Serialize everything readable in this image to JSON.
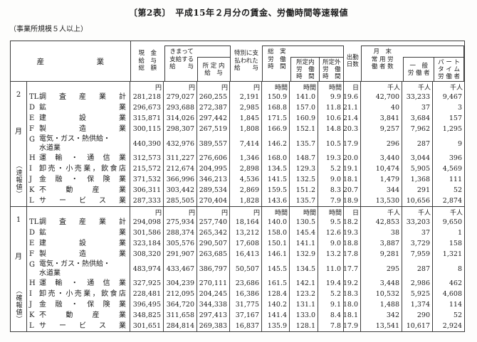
{
  "page": {
    "title": "〔第2表〕　平成15年２月分の賃金、労働時間等速報値",
    "subtitle": "（事業所規模５人以上）"
  },
  "table": {
    "industry_header": "産　　　　　　　業",
    "headers": {
      "cash_total": "現　金\n給　与\n総　額",
      "contractual_group": "きまって\n支給する\n給　　与",
      "scheduled_pay": "所 定 内\n給　与",
      "special_pay": "特別に支\n払われた\n給　　与",
      "total_hours_group": "総　実\n労　働\n時　間",
      "scheduled_hours": "所定内\n労　働\n時　間",
      "overtime_hours": "所定外\n労　働\n時　間",
      "days_worked": "出勤\n日数",
      "workers_group": "月　末\n常 用 労\n働 者 数",
      "general_workers": "一　般\n労 働 者",
      "parttime_workers": "パ ー ト\nタ イ ム\n労 働 者"
    },
    "units": [
      "円",
      "円",
      "円",
      "円",
      "時間",
      "時間",
      "時間",
      "日",
      "千人",
      "千人",
      "千人"
    ],
    "sections": [
      {
        "month": "2",
        "month_suffix": "月",
        "note": "（速報値）",
        "rows": [
          {
            "code": "TL",
            "name": "調査産業計",
            "multiline": false,
            "values": [
              "281,218",
              "279,027",
              "260,255",
              "2,191",
              "150.9",
              "141.0",
              "9.9",
              "19.6",
              "42,700",
              "33,233",
              "9,467"
            ]
          },
          {
            "code": "D",
            "name": "鉱業",
            "multiline": false,
            "values": [
              "296,673",
              "293,688",
              "272,387",
              "2,985",
              "168.8",
              "157.0",
              "11.8",
              "21.1",
              "40",
              "37",
              "3"
            ]
          },
          {
            "code": "E",
            "name": "建設業",
            "multiline": false,
            "values": [
              "315,871",
              "314,026",
              "297,442",
              "1,845",
              "171.5",
              "160.9",
              "10.6",
              "21.4",
              "3,841",
              "3,684",
              "157"
            ]
          },
          {
            "code": "F",
            "name": "製造業",
            "multiline": false,
            "values": [
              "300,115",
              "298,307",
              "267,519",
              "1,808",
              "166.9",
              "152.1",
              "14.8",
              "20.3",
              "9,257",
              "7,962",
              "1,295"
            ]
          },
          {
            "code": "G",
            "name": "電気・ガス・熱供給・\n水道業",
            "multiline": true,
            "values": [
              "440,390",
              "432,976",
              "389,557",
              "7,414",
              "146.2",
              "135.7",
              "10.5",
              "17.9",
              "296",
              "287",
              "9"
            ]
          },
          {
            "code": "H",
            "name": "運輸・通信業",
            "multiline": false,
            "values": [
              "312,573",
              "311,227",
              "276,606",
              "1,346",
              "168.0",
              "148.7",
              "19.3",
              "20.0",
              "3,440",
              "3,044",
              "396"
            ]
          },
          {
            "code": "I",
            "name": "卸売・小売業，飲食店",
            "multiline": false,
            "values": [
              "215,572",
              "212,674",
              "204,995",
              "2,898",
              "134.5",
              "129.3",
              "5.2",
              "19.1",
              "10,474",
              "5,905",
              "4,569"
            ]
          },
          {
            "code": "J",
            "name": "金融・保険業",
            "multiline": false,
            "values": [
              "371,532",
              "366,996",
              "346,213",
              "4,536",
              "141.5",
              "132.5",
              "9.0",
              "18.1",
              "1,479",
              "1,368",
              "111"
            ]
          },
          {
            "code": "K",
            "name": "不動産業",
            "multiline": false,
            "values": [
              "306,311",
              "303,442",
              "289,534",
              "2,869",
              "159.5",
              "151.2",
              "8.3",
              "20.7",
              "344",
              "291",
              "52"
            ]
          },
          {
            "code": "L",
            "name": "サービス業",
            "multiline": false,
            "values": [
              "287,333",
              "285,505",
              "270,404",
              "1,828",
              "143.6",
              "135.7",
              "7.9",
              "18.9",
              "13,530",
              "10,656",
              "2,874"
            ]
          }
        ]
      },
      {
        "month": "1",
        "month_suffix": "月",
        "note": "（確報値）",
        "rows": [
          {
            "code": "TL",
            "name": "調査産業計",
            "multiline": false,
            "values": [
              "294,098",
              "275,934",
              "257,740",
              "18,164",
              "140.0",
              "130.5",
              "9.5",
              "18.2",
              "42,853",
              "33,203",
              "9,650"
            ]
          },
          {
            "code": "D",
            "name": "鉱業",
            "multiline": false,
            "values": [
              "301,586",
              "288,374",
              "265,342",
              "13,212",
              "158.0",
              "145.4",
              "12.6",
              "19.3",
              "38",
              "37",
              "1"
            ]
          },
          {
            "code": "E",
            "name": "建設業",
            "multiline": false,
            "values": [
              "323,184",
              "305,576",
              "290,507",
              "17,608",
              "150.1",
              "141.1",
              "9.0",
              "18.8",
              "3,887",
              "3,729",
              "158"
            ]
          },
          {
            "code": "F",
            "name": "製造業",
            "multiline": false,
            "values": [
              "308,320",
              "291,907",
              "263,685",
              "16,413",
              "146.1",
              "132.9",
              "13.2",
              "17.8",
              "9,281",
              "7,959",
              "1,321"
            ]
          },
          {
            "code": "G",
            "name": "電気・ガス・熱供給・\n水道業",
            "multiline": true,
            "values": [
              "483,974",
              "433,467",
              "386,797",
              "50,507",
              "145.5",
              "134.5",
              "11.0",
              "17.7",
              "295",
              "287",
              "8"
            ]
          },
          {
            "code": "H",
            "name": "運輸・通信業",
            "multiline": false,
            "values": [
              "327,925",
              "304,239",
              "270,111",
              "23,686",
              "161.5",
              "142.1",
              "19.4",
              "19.2",
              "3,448",
              "2,986",
              "462"
            ]
          },
          {
            "code": "I",
            "name": "卸売・小売業，飲食店",
            "multiline": false,
            "values": [
              "228,481",
              "212,095",
              "204,245",
              "16,386",
              "128.4",
              "123.2",
              "5.2",
              "18.3",
              "10,532",
              "5,925",
              "4,608"
            ]
          },
          {
            "code": "J",
            "name": "金融・保険業",
            "multiline": false,
            "values": [
              "396,495",
              "364,720",
              "344,338",
              "31,775",
              "140.2",
              "131.1",
              "9.1",
              "18.0",
              "1,488",
              "1,374",
              "114"
            ]
          },
          {
            "code": "K",
            "name": "不動産業",
            "multiline": false,
            "values": [
              "348,825",
              "311,658",
              "297,413",
              "37,167",
              "141.4",
              "133.0",
              "8.4",
              "18.1",
              "342",
              "290",
              "52"
            ]
          },
          {
            "code": "L",
            "name": "サービス業",
            "multiline": false,
            "values": [
              "301,651",
              "284,814",
              "269,383",
              "16,837",
              "135.9",
              "128.1",
              "7.8",
              "17.9",
              "13,541",
              "10,617",
              "2,924"
            ]
          }
        ]
      }
    ]
  }
}
